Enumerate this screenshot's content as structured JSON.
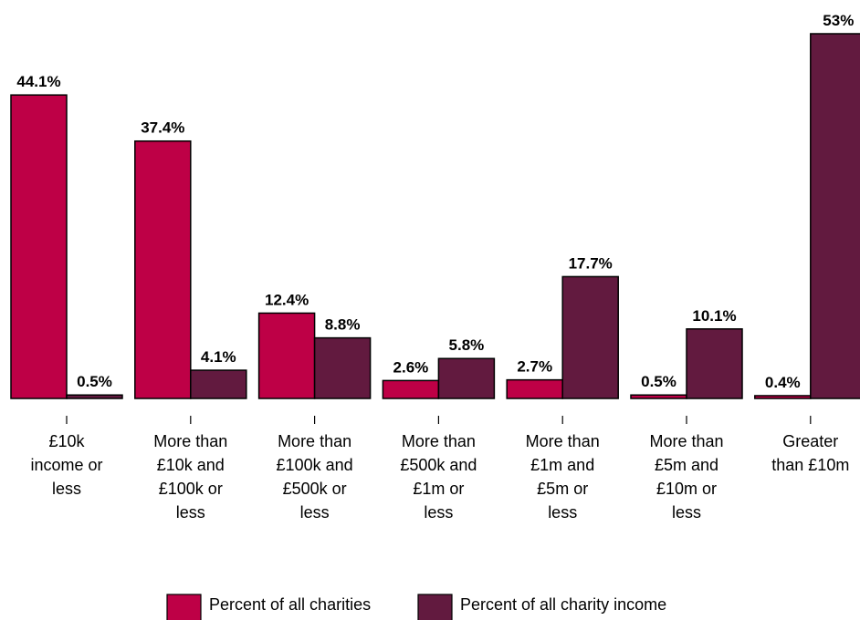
{
  "chart_data": {
    "type": "bar",
    "categories": [
      [
        "£10k",
        "income or",
        "less"
      ],
      [
        "More than",
        "£10k and",
        "£100k or",
        "less"
      ],
      [
        "More than",
        "£100k and",
        "£500k or",
        "less"
      ],
      [
        "More than",
        "£500k and",
        "£1m or",
        "less"
      ],
      [
        "More than",
        "£1m and",
        "£5m or",
        "less"
      ],
      [
        "More than",
        "£5m and",
        "£10m or",
        "less"
      ],
      [
        "Greater",
        "than £10m"
      ]
    ],
    "series": [
      {
        "name": "Percent of all charities",
        "color": "#BE0046",
        "values": [
          44.1,
          37.4,
          12.4,
          2.6,
          2.7,
          0.5,
          0.4
        ],
        "labels": [
          "44.1%",
          "37.4%",
          "12.4%",
          "2.6%",
          "2.7%",
          "0.5%",
          "0.4%"
        ]
      },
      {
        "name": "Percent of all charity income",
        "color": "#621A3F",
        "values": [
          0.5,
          4.1,
          8.8,
          5.8,
          17.7,
          10.1,
          53
        ],
        "labels": [
          "0.5%",
          "4.1%",
          "8.8%",
          "5.8%",
          "17.7%",
          "10.1%",
          "53%"
        ]
      }
    ],
    "ylim": [
      0,
      53
    ],
    "grid": false,
    "legend": "bottom-center"
  }
}
